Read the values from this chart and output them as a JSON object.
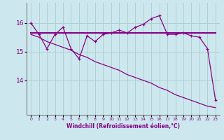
{
  "xlabel": "Windchill (Refroidissement éolien,°C)",
  "background_color": "#cce8ee",
  "grid_color": "#aacccc",
  "line_color": "#880088",
  "x_values": [
    0,
    1,
    2,
    3,
    4,
    5,
    6,
    7,
    8,
    9,
    10,
    11,
    12,
    13,
    14,
    15,
    16,
    17,
    18,
    19,
    20,
    21,
    22,
    23
  ],
  "y_series1": [
    16.0,
    15.6,
    15.1,
    15.6,
    15.85,
    15.1,
    14.75,
    15.55,
    15.35,
    15.6,
    15.65,
    15.75,
    15.65,
    15.85,
    15.95,
    16.15,
    16.25,
    15.6,
    15.6,
    15.65,
    15.55,
    15.5,
    15.1,
    13.3
  ],
  "y_series2": [
    15.65,
    15.65,
    15.65,
    15.65,
    15.65,
    15.65,
    15.65,
    15.65,
    15.65,
    15.65,
    15.65,
    15.65,
    15.65,
    15.65,
    15.65,
    15.65,
    15.65,
    15.65,
    15.65,
    15.65,
    15.65,
    15.65,
    15.65,
    15.65
  ],
  "y_series3": [
    15.6,
    15.5,
    15.35,
    15.25,
    15.15,
    15.05,
    14.9,
    14.8,
    14.65,
    14.55,
    14.45,
    14.35,
    14.2,
    14.1,
    14.0,
    13.9,
    13.75,
    13.65,
    13.5,
    13.4,
    13.3,
    13.2,
    13.1,
    13.05
  ],
  "yticks": [
    14,
    15,
    16
  ],
  "ylim": [
    12.8,
    16.7
  ],
  "xlim": [
    -0.5,
    23.5
  ]
}
